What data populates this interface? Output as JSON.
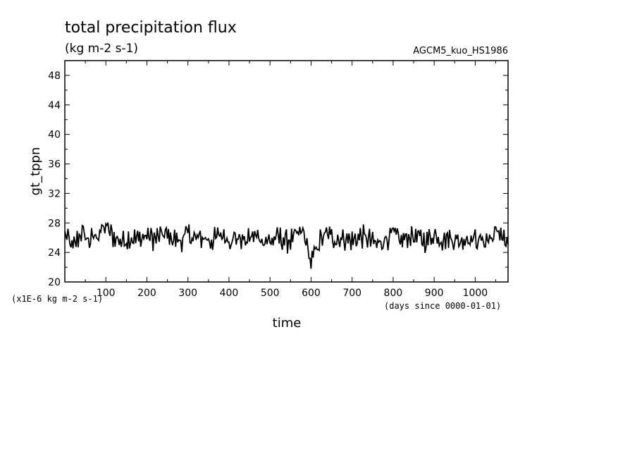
{
  "chart_data": {
    "type": "line",
    "title": "total precipitation flux",
    "units": "(kg m-2 s-1)",
    "run_id": "AGCM5_kuo_HS1986",
    "xlabel": "time",
    "ylabel": "gt_tppn",
    "x_units_note": "(days since 0000-01-01)",
    "y_scale_note": "(x1E-6 kg m-2 s-1)",
    "xlim": [
      0,
      1080
    ],
    "ylim": [
      20,
      50
    ],
    "xticks": [
      100,
      200,
      300,
      400,
      500,
      600,
      700,
      800,
      900,
      1000
    ],
    "yticks": [
      20,
      24,
      28,
      32,
      36,
      40,
      44,
      48
    ],
    "grid": false,
    "series": [
      {
        "x": [
          0,
          20,
          40,
          60,
          80,
          100,
          120,
          140,
          160,
          180,
          200,
          220,
          240,
          260,
          280,
          300,
          320,
          340,
          360,
          380,
          400,
          420,
          440,
          460,
          480,
          500,
          520,
          540,
          560,
          580,
          590,
          600,
          620,
          640,
          660,
          680,
          700,
          720,
          740,
          760,
          780,
          800,
          820,
          840,
          860,
          880,
          900,
          920,
          940,
          960,
          980,
          1000,
          1020,
          1040,
          1060,
          1080
        ],
        "values": [
          26.5,
          24.5,
          26.8,
          25.5,
          26.5,
          27.5,
          26.0,
          25.5,
          26.0,
          25.8,
          26.3,
          25.8,
          26.5,
          26.0,
          25.5,
          26.5,
          25.8,
          26.0,
          25.5,
          26.5,
          25.8,
          26.0,
          25.5,
          26.3,
          25.8,
          25.5,
          26.0,
          25.5,
          26.0,
          26.8,
          25.0,
          22.5,
          25.5,
          26.5,
          25.8,
          26.0,
          25.5,
          26.2,
          25.8,
          25.0,
          25.8,
          26.5,
          25.5,
          26.3,
          26.0,
          25.5,
          26.5,
          25.8,
          26.0,
          25.5,
          26.0,
          25.8,
          25.5,
          26.0,
          27.0,
          24.5
        ]
      }
    ]
  }
}
